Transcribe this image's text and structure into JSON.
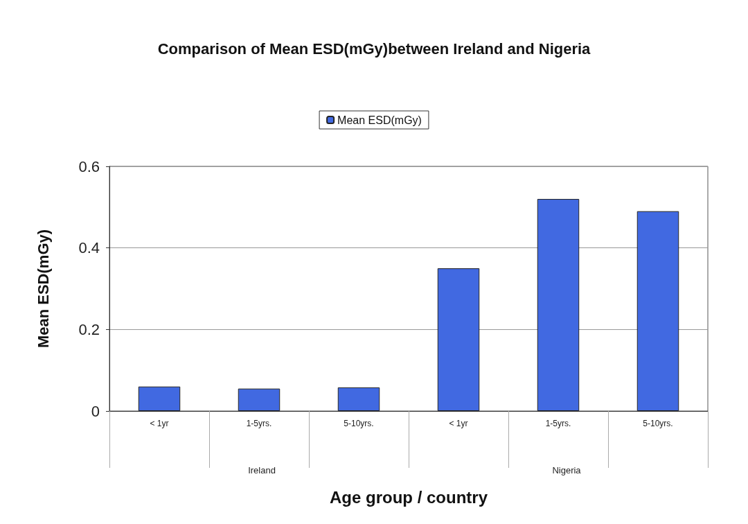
{
  "chart_data": {
    "type": "bar",
    "title": "Comparison of Mean ESD(mGy)between Ireland and Nigeria",
    "xlabel": "Age group / country",
    "ylabel": "Mean ESD(mGy)",
    "categories": [
      "< 1yr",
      "1-5yrs.",
      "5-10yrs.",
      "< 1yr",
      "1-5yrs.",
      "5-10yrs."
    ],
    "series": [
      {
        "name": "Mean ESD(mGy)",
        "color": "#4169e1",
        "values": [
          0.06,
          0.055,
          0.058,
          0.35,
          0.52,
          0.49
        ]
      }
    ],
    "annotations": [
      "Ireland",
      "Nigeria"
    ],
    "ylim": [
      0,
      0.6
    ],
    "yticks": [
      0,
      0.2,
      0.4,
      0.6
    ],
    "grid": "y",
    "legend": "top"
  }
}
